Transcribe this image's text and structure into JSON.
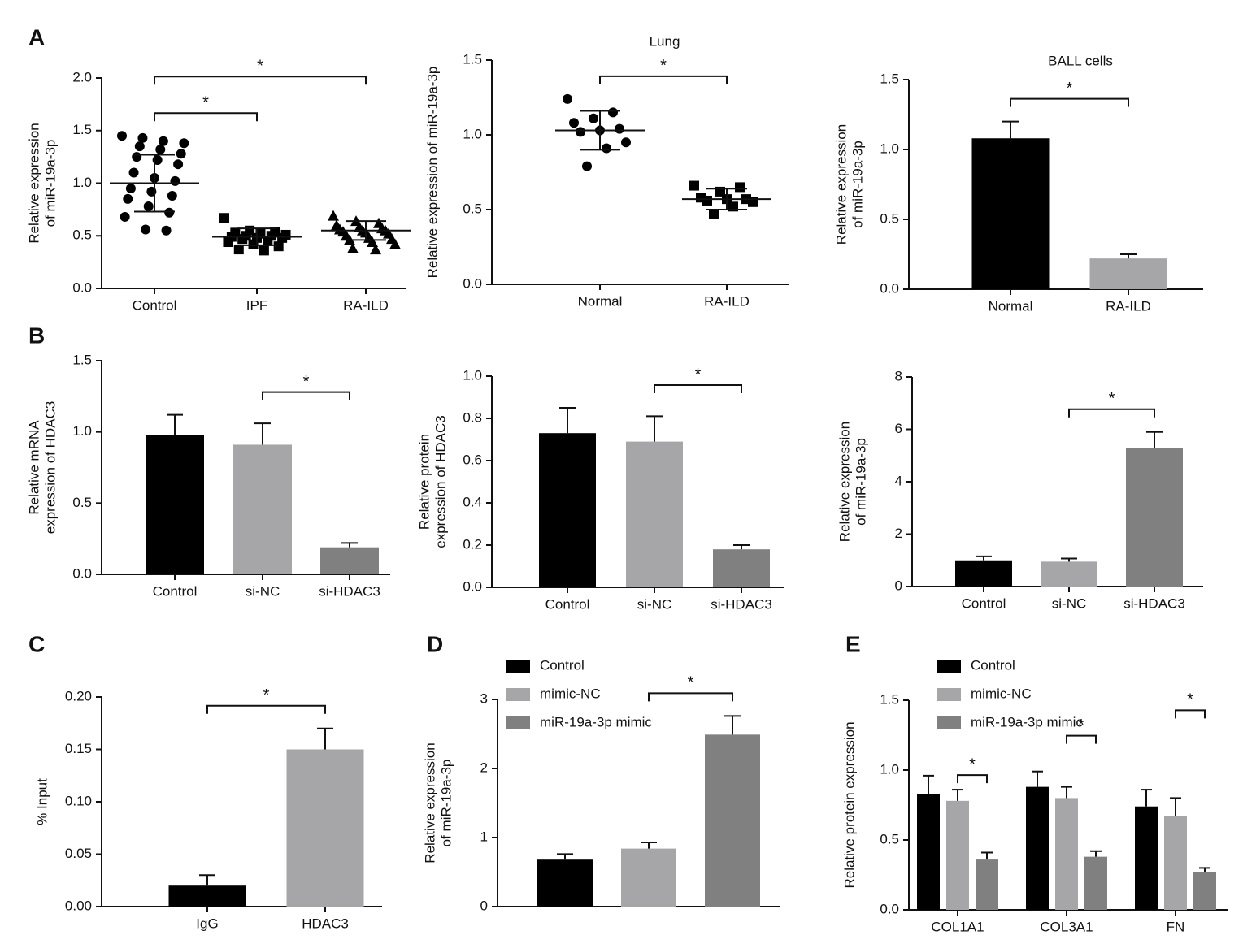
{
  "chart_data": [
    {
      "type": "dotplot",
      "panel": "A",
      "ylabel": [
        "Relative expression",
        "of miR-19a-3p"
      ],
      "categories": [
        "Control",
        "IPF",
        "RA-ILD"
      ],
      "points": [
        [
          1.45,
          1.43,
          1.4,
          1.38,
          1.35,
          1.32,
          1.28,
          1.25,
          1.22,
          1.18,
          1.1,
          1.05,
          1.02,
          0.95,
          0.92,
          0.88,
          0.85,
          0.78,
          0.72,
          0.68,
          0.56,
          0.55
        ],
        [
          0.67,
          0.55,
          0.54,
          0.53,
          0.52,
          0.51,
          0.5,
          0.5,
          0.49,
          0.48,
          0.48,
          0.47,
          0.45,
          0.44,
          0.42,
          0.4,
          0.37,
          0.36
        ],
        [
          0.69,
          0.64,
          0.62,
          0.6,
          0.58,
          0.57,
          0.56,
          0.55,
          0.55,
          0.54,
          0.53,
          0.52,
          0.5,
          0.48,
          0.47,
          0.46,
          0.44,
          0.42,
          0.38,
          0.37
        ]
      ],
      "values": [
        1.0,
        0.49,
        0.55
      ],
      "errors": [
        0.27,
        0.08,
        0.09
      ],
      "colors": [
        "#000000",
        "#000000",
        "#000000"
      ],
      "ylim": [
        0,
        2
      ],
      "yticks": [
        {
          "value": 0,
          "label": "0.0"
        },
        {
          "value": 0.5,
          "label": "0.5"
        },
        {
          "value": 1,
          "label": "1.0"
        },
        {
          "value": 1.5,
          "label": "1.5"
        },
        {
          "value": 2,
          "label": "2.0"
        }
      ],
      "significance": [
        {
          "groups": [
            "Control",
            "IPF"
          ],
          "label": "*"
        },
        {
          "groups": [
            "Control",
            "RA-ILD"
          ],
          "label": "*"
        }
      ]
    },
    {
      "type": "dotplot",
      "title": "Lung",
      "ylabel": [
        "Relative expression of miR-19a-3p"
      ],
      "categories": [
        "Normal",
        "RA-ILD"
      ],
      "points": [
        [
          1.24,
          1.15,
          1.11,
          1.08,
          1.04,
          1.03,
          1.02,
          0.95,
          0.91,
          0.79
        ],
        [
          0.66,
          0.65,
          0.62,
          0.58,
          0.57,
          0.57,
          0.56,
          0.55,
          0.52,
          0.47
        ]
      ],
      "values": [
        1.03,
        0.57
      ],
      "errors": [
        0.13,
        0.07
      ],
      "colors": [
        "#000000",
        "#000000"
      ],
      "ylim": [
        0,
        1.5
      ],
      "yticks": [
        {
          "value": 0,
          "label": "0.0"
        },
        {
          "value": 0.5,
          "label": "0.5"
        },
        {
          "value": 1,
          "label": "1.0"
        },
        {
          "value": 1.5,
          "label": "1.5"
        }
      ],
      "significance": [
        {
          "groups": [
            "Normal",
            "RA-ILD"
          ],
          "label": "*"
        }
      ]
    },
    {
      "type": "bar",
      "title": "BALL cells",
      "ylabel": [
        "Relative expression",
        "of miR-19a-3p"
      ],
      "categories": [
        "Normal",
        "RA-ILD"
      ],
      "values": [
        1.08,
        0.22
      ],
      "errors": [
        0.12,
        0.03
      ],
      "colors": [
        "#000000",
        "#a6a6a9"
      ],
      "ylim": [
        0,
        1.5
      ],
      "yticks": [
        {
          "value": 0,
          "label": "0.0"
        },
        {
          "value": 0.5,
          "label": "0.5"
        },
        {
          "value": 1,
          "label": "1.0"
        },
        {
          "value": 1.5,
          "label": "1.5"
        }
      ],
      "significance": [
        {
          "groups": [
            "Normal",
            "RA-ILD"
          ],
          "label": "*"
        }
      ]
    },
    {
      "type": "bar",
      "panel": "B",
      "ylabel": [
        "Relative mRNA",
        "expression of HDAC3"
      ],
      "categories": [
        "Control",
        "si-NC",
        "si-HDAC3"
      ],
      "values": [
        0.98,
        0.91,
        0.19
      ],
      "errors": [
        0.14,
        0.15,
        0.03
      ],
      "colors": [
        "#000000",
        "#a6a6a9",
        "#808080"
      ],
      "ylim": [
        0,
        1.5
      ],
      "yticks": [
        {
          "value": 0,
          "label": "0.0"
        },
        {
          "value": 0.5,
          "label": "0.5"
        },
        {
          "value": 1,
          "label": "1.0"
        },
        {
          "value": 1.5,
          "label": "1.5"
        }
      ],
      "significance": [
        {
          "groups": [
            "si-NC",
            "si-HDAC3"
          ],
          "label": "*"
        }
      ]
    },
    {
      "type": "bar",
      "ylabel": [
        "Relative protein",
        "expression of HDAC3"
      ],
      "categories": [
        "Control",
        "si-NC",
        "si-HDAC3"
      ],
      "values": [
        0.73,
        0.69,
        0.18
      ],
      "errors": [
        0.12,
        0.12,
        0.02
      ],
      "colors": [
        "#000000",
        "#a6a6a9",
        "#808080"
      ],
      "ylim": [
        0,
        1
      ],
      "yticks": [
        {
          "value": 0,
          "label": "0.0"
        },
        {
          "value": 0.2,
          "label": "0.2"
        },
        {
          "value": 0.4,
          "label": "0.4"
        },
        {
          "value": 0.6,
          "label": "0.6"
        },
        {
          "value": 0.8,
          "label": "0.8"
        },
        {
          "value": 1,
          "label": "1.0"
        }
      ],
      "significance": [
        {
          "groups": [
            "si-NC",
            "si-HDAC3"
          ],
          "label": "*"
        }
      ]
    },
    {
      "type": "bar",
      "ylabel": [
        "Relative expression",
        "of miR-19a-3p"
      ],
      "categories": [
        "Control",
        "si-NC",
        "si-HDAC3"
      ],
      "values": [
        1.0,
        0.95,
        5.3
      ],
      "errors": [
        0.15,
        0.12,
        0.6
      ],
      "colors": [
        "#000000",
        "#a6a6a9",
        "#808080"
      ],
      "ylim": [
        0,
        8
      ],
      "yticks": [
        0,
        2,
        4,
        6,
        8
      ],
      "significance": [
        {
          "groups": [
            "si-NC",
            "si-HDAC3"
          ],
          "label": "*"
        }
      ]
    },
    {
      "type": "bar",
      "panel": "C",
      "ylabel": [
        "% Input"
      ],
      "categories": [
        "IgG",
        "HDAC3"
      ],
      "values": [
        0.02,
        0.15
      ],
      "errors": [
        0.01,
        0.02
      ],
      "colors": [
        "#000000",
        "#a6a6a9"
      ],
      "ylim": [
        0,
        0.2
      ],
      "yticks": [
        {
          "value": 0,
          "label": "0.00"
        },
        {
          "value": 0.05,
          "label": "0.05"
        },
        {
          "value": 0.1,
          "label": "0.10"
        },
        {
          "value": 0.15,
          "label": "0.15"
        },
        {
          "value": 0.2,
          "label": "0.20"
        }
      ],
      "significance": [
        {
          "groups": [
            "IgG",
            "HDAC3"
          ],
          "label": "*"
        }
      ]
    },
    {
      "type": "bar",
      "panel": "D",
      "ylabel": [
        "Relative expression",
        "of miR-19a-3p"
      ],
      "legend": true,
      "categories": [
        "Control",
        "mimic-NC",
        "miR-19a-3p mimic"
      ],
      "values": [
        0.68,
        0.84,
        2.49
      ],
      "errors": [
        0.08,
        0.09,
        0.27
      ],
      "colors": [
        "#000000",
        "#a6a6a9",
        "#808080"
      ],
      "ylim": [
        0,
        3
      ],
      "yticks": [
        0,
        1,
        2,
        3
      ],
      "significance": [
        {
          "groups": [
            "mimic-NC",
            "miR-19a-3p mimic"
          ],
          "label": "*"
        }
      ]
    },
    {
      "type": "groupedbar",
      "panel": "E",
      "ylabel": [
        "Relative protein expression"
      ],
      "categories": [
        "COL1A1",
        "COL3A1",
        "FN"
      ],
      "series": [
        {
          "name": "Control",
          "color": "#000000",
          "values": [
            0.83,
            0.88,
            0.74
          ],
          "errors": [
            0.13,
            0.11,
            0.12
          ]
        },
        {
          "name": "mimic-NC",
          "color": "#a6a6a9",
          "values": [
            0.78,
            0.8,
            0.67
          ],
          "errors": [
            0.08,
            0.08,
            0.13
          ]
        },
        {
          "name": "miR-19a-3p mimic",
          "color": "#808080",
          "values": [
            0.36,
            0.38,
            0.27
          ],
          "errors": [
            0.05,
            0.04,
            0.03
          ]
        }
      ],
      "ylim": [
        0,
        1.5
      ],
      "yticks": [
        {
          "value": 0,
          "label": "0.0"
        },
        {
          "value": 0.5,
          "label": "0.5"
        },
        {
          "value": 1,
          "label": "1.0"
        },
        {
          "value": 1.5,
          "label": "1.5"
        }
      ],
      "significance": [
        {
          "category": "COL1A1",
          "groups": [
            "mimic-NC",
            "miR-19a-3p mimic"
          ],
          "label": "*"
        },
        {
          "category": "COL3A1",
          "groups": [
            "mimic-NC",
            "miR-19a-3p mimic"
          ],
          "label": "*"
        },
        {
          "category": "FN",
          "groups": [
            "mimic-NC",
            "miR-19a-3p mimic"
          ],
          "label": "*"
        }
      ]
    }
  ]
}
